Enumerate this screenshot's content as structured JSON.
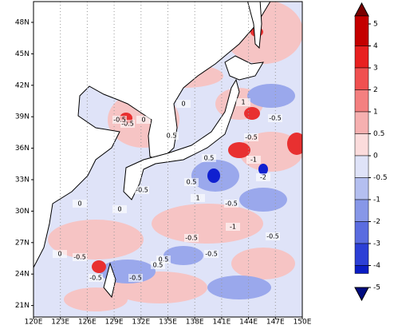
{
  "map": {
    "lon_labels": [
      "120E",
      "123E",
      "126E",
      "129E",
      "132E",
      "135E",
      "138E",
      "141E",
      "144E",
      "147E",
      "150E"
    ],
    "lat_labels": [
      "48N",
      "45N",
      "42N",
      "39N",
      "36N",
      "33N",
      "30N",
      "27N",
      "24N",
      "21N"
    ],
    "contour_labels": [
      "-0.5",
      "0",
      "0.5",
      "-0.5",
      "1",
      "0",
      "-0.5",
      "0.5",
      "-1",
      "0.5",
      "-0.5",
      "-1",
      "-2",
      "1",
      "-0.5",
      "0",
      "-0.5",
      "-0.5",
      "-0.5",
      "0",
      "0.5",
      "-0.5",
      "-0.5",
      "-0.5",
      "0",
      "0.5",
      "-0.5"
    ],
    "colorbar": {
      "labels": [
        "5",
        "4",
        "3",
        "2",
        "1",
        "0.5",
        "0",
        "-0.5",
        "-1",
        "-2",
        "-3",
        "-4",
        "-5"
      ],
      "colors": [
        "#7a0000",
        "#c40000",
        "#e82020",
        "#f05050",
        "#f48080",
        "#f6b0b0",
        "#fbdcdc",
        "#dfe3f8",
        "#b4bff0",
        "#8797e8",
        "#5a6ce0",
        "#2c3fd6",
        "#0a1cc4",
        "#000c80"
      ]
    }
  }
}
